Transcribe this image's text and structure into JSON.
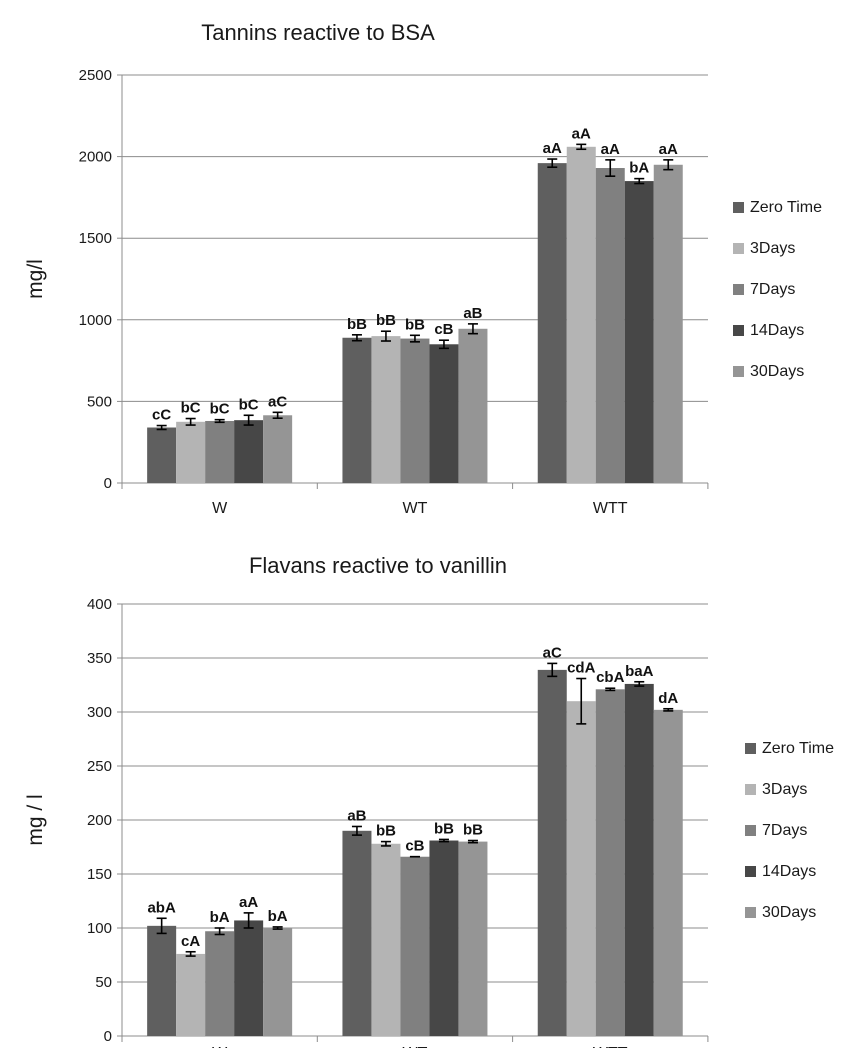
{
  "chart_data": [
    {
      "type": "bar",
      "title": "Tannins reactive to BSA",
      "xlabel": "",
      "ylabel": "mg/l",
      "ylim": [
        0,
        2500
      ],
      "yticks": [
        "0",
        "500",
        "1000",
        "1500",
        "2000",
        "2500"
      ],
      "categories": [
        "W",
        "WT",
        "WTT"
      ],
      "grid": "horizontal",
      "legend_position": "right",
      "series": [
        {
          "name": "Zero Time",
          "color": "#5f5f5f",
          "values": [
            340,
            890,
            1960
          ],
          "errors": [
            12,
            18,
            25
          ],
          "labels": [
            "cC",
            "bB",
            "aA"
          ]
        },
        {
          "name": "3Days",
          "color": "#b4b4b4",
          "values": [
            375,
            900,
            2060
          ],
          "errors": [
            20,
            30,
            15
          ],
          "labels": [
            "bC",
            "bB",
            "aA"
          ]
        },
        {
          "name": "7Days",
          "color": "#808080",
          "values": [
            380,
            885,
            1930
          ],
          "errors": [
            8,
            20,
            50
          ],
          "labels": [
            "bC",
            "bB",
            "aA"
          ]
        },
        {
          "name": "14Days",
          "color": "#474747",
          "values": [
            385,
            850,
            1850
          ],
          "errors": [
            30,
            25,
            15
          ],
          "labels": [
            "bC",
            "cB",
            "bA"
          ]
        },
        {
          "name": "30Days",
          "color": "#959595",
          "values": [
            415,
            945,
            1950
          ],
          "errors": [
            18,
            30,
            30
          ],
          "labels": [
            "aC",
            "aB",
            "aA"
          ]
        }
      ]
    },
    {
      "type": "bar",
      "title": "Flavans reactive to vanillin",
      "xlabel": "",
      "ylabel": "mg / l",
      "ylim": [
        0,
        400
      ],
      "yticks": [
        "0",
        "50",
        "100",
        "150",
        "200",
        "250",
        "300",
        "350",
        "400"
      ],
      "categories": [
        "W",
        "WT",
        "WTT"
      ],
      "grid": "horizontal",
      "legend_position": "right",
      "series": [
        {
          "name": "Zero Time",
          "color": "#5f5f5f",
          "values": [
            102,
            190,
            339
          ],
          "errors": [
            7,
            4,
            6
          ],
          "labels": [
            "abA",
            "aB",
            "aC"
          ]
        },
        {
          "name": "3Days",
          "color": "#b4b4b4",
          "values": [
            76,
            178,
            310
          ],
          "errors": [
            2,
            2,
            21
          ],
          "labels": [
            "cA",
            "bB",
            "cdA"
          ]
        },
        {
          "name": "7Days",
          "color": "#808080",
          "values": [
            97,
            166,
            321
          ],
          "errors": [
            3,
            0,
            1
          ],
          "labels": [
            "bA",
            "cB",
            "cbA"
          ]
        },
        {
          "name": "14Days",
          "color": "#474747",
          "values": [
            107,
            181,
            326
          ],
          "errors": [
            7,
            1,
            2
          ],
          "labels": [
            "aA",
            "bB",
            "baA"
          ]
        },
        {
          "name": "30Days",
          "color": "#959595",
          "values": [
            100,
            180,
            302
          ],
          "errors": [
            1,
            1,
            1
          ],
          "labels": [
            "bA",
            "bB",
            "dA"
          ]
        }
      ]
    }
  ]
}
